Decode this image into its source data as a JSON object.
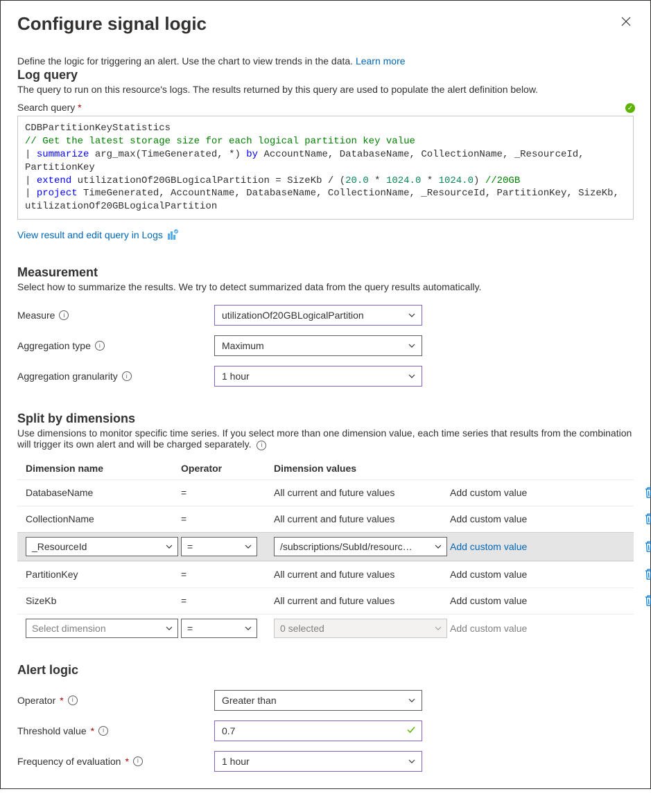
{
  "header": {
    "title": "Configure signal logic"
  },
  "intro": {
    "text": "Define the logic for triggering an alert. Use the chart to view trends in the data. ",
    "learn_more": "Learn more"
  },
  "log_query": {
    "heading": "Log query",
    "desc": "The query to run on this resource's logs. The results returned by this query are used to populate the alert definition below.",
    "search_label": "Search query",
    "query": {
      "line1": "CDBPartitionKeyStatistics",
      "line2": "// Get the latest storage size for each logical partition key value",
      "line3_pipe": "| ",
      "line3_summarize": "summarize",
      "line3_mid": " arg_max(TimeGenerated, *) ",
      "line3_by": "by",
      "line3_rest": " AccountName, DatabaseName, CollectionName, _ResourceId, PartitionKey",
      "line4_pipe": "| ",
      "line4_extend": "extend",
      "line4_mid": " utilizationOf20GBLogicalPartition = SizeKb / (",
      "line4_n1": "20.0",
      "line4_s1": " * ",
      "line4_n2": "1024.0",
      "line4_s2": " * ",
      "line4_n3": "1024.0",
      "line4_close": ") ",
      "line4_comment": "//20GB",
      "line5_pipe": "| ",
      "line5_project": "project",
      "line5_rest": " TimeGenerated, AccountName, DatabaseName, CollectionName, _ResourceId, PartitionKey, SizeKb, utilizationOf20GBLogicalPartition"
    },
    "view_link": "View result and edit query in Logs"
  },
  "measurement": {
    "heading": "Measurement",
    "desc": "Select how to summarize the results. We try to detect summarized data from the query results automatically.",
    "measure_label": "Measure",
    "measure_value": "utilizationOf20GBLogicalPartition",
    "agg_type_label": "Aggregation type",
    "agg_type_value": "Maximum",
    "agg_gran_label": "Aggregation granularity",
    "agg_gran_value": "1 hour"
  },
  "dimensions": {
    "heading": "Split by dimensions",
    "desc": "Use dimensions to monitor specific time series. If you select more than one dimension value, each time series that results from the combination will trigger its own alert and will be charged separately.",
    "col_name": "Dimension name",
    "col_op": "Operator",
    "col_val": "Dimension values",
    "rows": [
      {
        "name": "DatabaseName",
        "op": "=",
        "val": "All current and future values",
        "custom": "Add custom value",
        "custom_style": "text"
      },
      {
        "name": "CollectionName",
        "op": "=",
        "val": "All current and future values",
        "custom": "Add custom value",
        "custom_style": "text"
      },
      {
        "name": "_ResourceId",
        "op": "=",
        "val": "/subscriptions/SubId/resourc…",
        "custom": "Add custom value",
        "custom_style": "link",
        "active": true,
        "as_selects": true
      },
      {
        "name": "PartitionKey",
        "op": "=",
        "val": "All current and future values",
        "custom": "Add custom value",
        "custom_style": "text"
      },
      {
        "name": "SizeKb",
        "op": "=",
        "val": "All current and future values",
        "custom": "Add custom value",
        "custom_style": "text"
      }
    ],
    "new_row": {
      "name_placeholder": "Select dimension",
      "op": "=",
      "val_placeholder": "0 selected",
      "custom": "Add custom value"
    }
  },
  "alert_logic": {
    "heading": "Alert logic",
    "operator_label": "Operator",
    "operator_value": "Greater than",
    "threshold_label": "Threshold value",
    "threshold_value": "0.7",
    "freq_label": "Frequency of evaluation",
    "freq_value": "1 hour"
  }
}
